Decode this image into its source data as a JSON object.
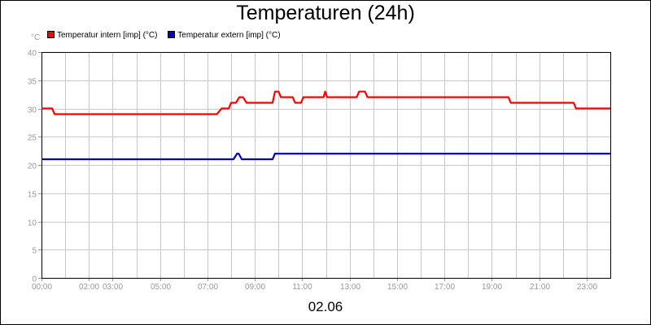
{
  "chart_data": {
    "type": "line",
    "title": "Temperaturen (24h)",
    "y_unit": "°C",
    "xlabel": "02.06",
    "ylim": [
      0,
      40
    ],
    "xlim": [
      0,
      24
    ],
    "y_ticks": [
      0,
      5,
      10,
      15,
      20,
      25,
      30,
      35,
      40
    ],
    "x_ticks": [
      {
        "t": 0,
        "label": "00:00"
      },
      {
        "t": 2,
        "label": "02:00"
      },
      {
        "t": 3,
        "label": "03:00"
      },
      {
        "t": 5,
        "label": "05:00"
      },
      {
        "t": 7,
        "label": "07:00"
      },
      {
        "t": 9,
        "label": "09:00"
      },
      {
        "t": 11,
        "label": "11:00"
      },
      {
        "t": 13,
        "label": "13:00"
      },
      {
        "t": 15,
        "label": "15:00"
      },
      {
        "t": 17,
        "label": "17:00"
      },
      {
        "t": 19,
        "label": "19:00"
      },
      {
        "t": 21,
        "label": "21:00"
      },
      {
        "t": 23,
        "label": "23:00"
      }
    ],
    "grid": true,
    "legend_position": "top-left",
    "series": [
      {
        "name": "Temperatur intern [imp] (°C)",
        "color": "#ff0000",
        "points": [
          [
            0,
            30
          ],
          [
            0.45,
            30
          ],
          [
            0.55,
            29
          ],
          [
            7.4,
            29
          ],
          [
            7.6,
            30
          ],
          [
            7.9,
            30
          ],
          [
            8.0,
            31
          ],
          [
            8.2,
            31
          ],
          [
            8.35,
            32
          ],
          [
            8.5,
            32
          ],
          [
            8.65,
            31
          ],
          [
            9.75,
            31
          ],
          [
            9.85,
            33
          ],
          [
            10.0,
            33
          ],
          [
            10.1,
            32
          ],
          [
            10.6,
            32
          ],
          [
            10.7,
            31
          ],
          [
            10.95,
            31
          ],
          [
            11.05,
            32
          ],
          [
            11.9,
            32
          ],
          [
            11.97,
            33
          ],
          [
            12.05,
            32
          ],
          [
            13.3,
            32
          ],
          [
            13.4,
            33
          ],
          [
            13.65,
            33
          ],
          [
            13.75,
            32
          ],
          [
            19.7,
            32
          ],
          [
            19.8,
            31
          ],
          [
            22.45,
            31
          ],
          [
            22.55,
            30
          ],
          [
            24,
            30
          ]
        ]
      },
      {
        "name": "Temperatur extern [imp] (°C)",
        "color": "#0000cc",
        "points": [
          [
            0,
            21
          ],
          [
            8.1,
            21
          ],
          [
            8.25,
            22
          ],
          [
            8.32,
            22
          ],
          [
            8.45,
            21
          ],
          [
            9.75,
            21
          ],
          [
            9.85,
            22
          ],
          [
            24,
            22
          ]
        ]
      }
    ]
  }
}
